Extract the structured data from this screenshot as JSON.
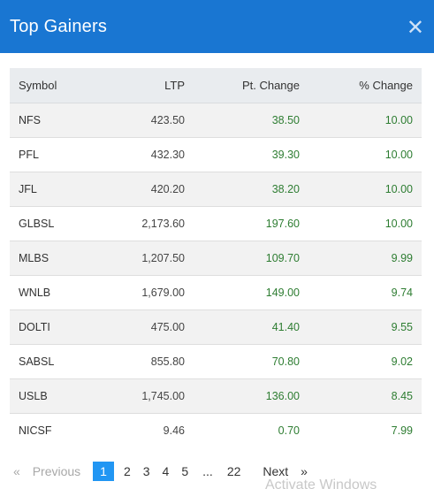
{
  "header": {
    "title": "Top Gainers",
    "close_icon": "close-icon"
  },
  "table": {
    "columns": [
      "Symbol",
      "LTP",
      "Pt. Change",
      "% Change"
    ],
    "rows": [
      {
        "symbol": "NFS",
        "ltp": "423.50",
        "pt_change": "38.50",
        "pct_change": "10.00"
      },
      {
        "symbol": "PFL",
        "ltp": "432.30",
        "pt_change": "39.30",
        "pct_change": "10.00"
      },
      {
        "symbol": "JFL",
        "ltp": "420.20",
        "pt_change": "38.20",
        "pct_change": "10.00"
      },
      {
        "symbol": "GLBSL",
        "ltp": "2,173.60",
        "pt_change": "197.60",
        "pct_change": "10.00"
      },
      {
        "symbol": "MLBS",
        "ltp": "1,207.50",
        "pt_change": "109.70",
        "pct_change": "9.99"
      },
      {
        "symbol": "WNLB",
        "ltp": "1,679.00",
        "pt_change": "149.00",
        "pct_change": "9.74"
      },
      {
        "symbol": "DOLTI",
        "ltp": "475.00",
        "pt_change": "41.40",
        "pct_change": "9.55"
      },
      {
        "symbol": "SABSL",
        "ltp": "855.80",
        "pt_change": "70.80",
        "pct_change": "9.02"
      },
      {
        "symbol": "USLB",
        "ltp": "1,745.00",
        "pt_change": "136.00",
        "pct_change": "8.45"
      },
      {
        "symbol": "NICSF",
        "ltp": "9.46",
        "pt_change": "0.70",
        "pct_change": "7.99"
      }
    ]
  },
  "pagination": {
    "prev_symbol": "«",
    "prev_label": "Previous",
    "pages": [
      "1",
      "2",
      "3",
      "4",
      "5"
    ],
    "ellipsis": "...",
    "last_page": "22",
    "next_label": "Next",
    "next_symbol": "»",
    "active_page": "1"
  },
  "watermark": "Activate Windows",
  "colors": {
    "header_bg": "#1976d2",
    "positive": "#2e7d32",
    "active_page": "#2196f3"
  }
}
